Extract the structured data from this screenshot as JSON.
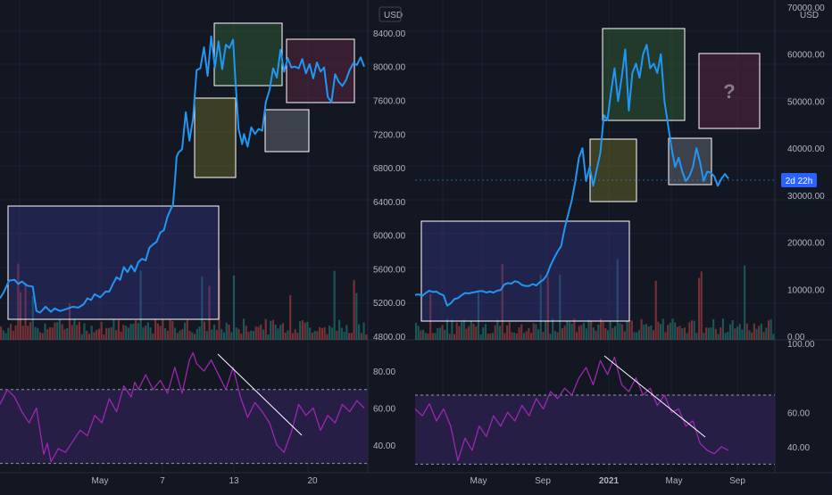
{
  "colors": {
    "background": "#131722",
    "grid": "#1e222d",
    "price_line": "#2196f3",
    "rsi_line": "#9c27b0",
    "rsi_band": "#2a1f4a",
    "axis_text": "#b2b5be",
    "vol_up": "#26a69a",
    "vol_down": "#ef5350"
  },
  "chart_data": [
    {
      "type": "line",
      "panel": "left-price",
      "currency_label": "USD",
      "y_ticks": [
        "8400.00",
        "8000.00",
        "7600.00",
        "7200.00",
        "6800.00",
        "6400.00",
        "6000.00",
        "5600.00",
        "5200.00",
        "4800.00"
      ],
      "ylim": [
        4800,
        8600
      ],
      "x_ticks": [
        "May",
        "7",
        "13",
        "20"
      ],
      "series": [
        {
          "x": [
            0,
            2,
            5,
            8,
            10,
            12,
            15,
            18,
            20,
            22,
            25,
            28,
            30,
            33,
            36,
            40,
            43,
            46,
            48,
            50,
            52,
            55,
            58,
            60,
            62,
            64,
            66,
            68,
            70,
            72,
            74,
            76,
            78,
            80,
            82,
            84,
            86,
            88,
            90,
            92,
            94,
            95,
            96,
            97,
            98,
            100,
            102,
            104,
            106,
            108,
            110,
            112,
            114,
            116,
            118,
            120,
            122,
            124,
            126,
            128,
            129,
            131,
            133,
            134,
            136,
            138,
            140,
            142,
            144,
            146,
            148,
            150,
            152,
            154,
            156,
            158,
            160,
            162,
            164,
            166,
            168,
            170,
            172,
            174,
            176,
            178,
            180,
            182,
            184,
            186,
            188,
            190,
            192,
            194,
            196,
            198,
            200
          ],
          "y": [
            5250,
            5320,
            5460,
            5470,
            5420,
            5450,
            5400,
            5390,
            5100,
            5080,
            5150,
            5090,
            5130,
            5100,
            5120,
            5150,
            5140,
            5180,
            5250,
            5230,
            5300,
            5260,
            5330,
            5330,
            5420,
            5500,
            5470,
            5620,
            5560,
            5640,
            5570,
            5680,
            5720,
            5700,
            5850,
            5890,
            5920,
            6030,
            6060,
            6220,
            6320,
            6360,
            6620,
            6930,
            6980,
            7020,
            7460,
            7120,
            7380,
            7960,
            7980,
            8230,
            7890,
            8360,
            7990,
            8300,
            7970,
            8260,
            8220,
            8320,
            7930,
            7260,
            7080,
            7200,
            7050,
            7280,
            7200,
            7260,
            7240,
            7580,
            7720,
            7980,
            7870,
            8200,
            7940,
            8100,
            7990,
            8000,
            7980,
            8090,
            7920,
            8030,
            7860,
            8050,
            7940,
            7990,
            7640,
            7580,
            7910,
            7820,
            7770,
            7840,
            7960,
            8040,
            8020,
            8110,
            8000
          ]
        }
      ]
    },
    {
      "type": "line",
      "panel": "right-price",
      "currency_label": "USD",
      "y_ticks": [
        "70000.00",
        "60000.00",
        "50000.00",
        "40000.00",
        "30000.00",
        "20000.00",
        "10000.00",
        "0.00"
      ],
      "ylim": [
        0,
        70000
      ],
      "x_ticks": [
        "May",
        "Sep",
        "2021",
        "May",
        "Sep"
      ],
      "last_value_label": "2d 22h",
      "box_label": "?",
      "series": [
        {
          "x": [
            0,
            2,
            4,
            6,
            8,
            10,
            12,
            14,
            16,
            18,
            20,
            22,
            24,
            26,
            28,
            30,
            32,
            34,
            36,
            38,
            40,
            42,
            44,
            46,
            48,
            50,
            52,
            54,
            56,
            58,
            60,
            62,
            64,
            66,
            68,
            70,
            72,
            74,
            76,
            78,
            80,
            82,
            84,
            86,
            88,
            90,
            92,
            94,
            96,
            98,
            100,
            102,
            104,
            106,
            108,
            110,
            112,
            114,
            116,
            118,
            120,
            122,
            124,
            126,
            128,
            130,
            132,
            134,
            136,
            138,
            140,
            142,
            144,
            146,
            148,
            150,
            152,
            154,
            156,
            158,
            160,
            162,
            164,
            166,
            168,
            170,
            172,
            174,
            176
          ],
          "y": [
            8800,
            8900,
            8600,
            9200,
            9700,
            9400,
            9500,
            9000,
            8700,
            6500,
            7000,
            7900,
            8100,
            8700,
            9200,
            9100,
            9300,
            9400,
            9600,
            9600,
            9300,
            9500,
            9300,
            9700,
            9800,
            11000,
            11300,
            11200,
            11700,
            11500,
            10900,
            10700,
            10700,
            11100,
            10800,
            11500,
            12000,
            13000,
            15000,
            16600,
            18000,
            19200,
            23000,
            26000,
            29000,
            33000,
            38000,
            40000,
            33000,
            36000,
            32000,
            35500,
            39000,
            47000,
            46000,
            52000,
            57000,
            50000,
            55000,
            61000,
            48000,
            56000,
            58000,
            55000,
            60000,
            62000,
            57000,
            58000,
            56000,
            60000,
            50000,
            45000,
            40000,
            36000,
            38000,
            35000,
            33000,
            34000,
            36000,
            40000,
            37000,
            33000,
            35000,
            34800,
            34000,
            32000,
            33500,
            34500,
            33500
          ]
        }
      ]
    },
    {
      "type": "line",
      "panel": "left-rsi",
      "y_ticks": [
        "80.00",
        "60.00",
        "40.00"
      ],
      "ylim": [
        25,
        95
      ],
      "band": [
        30,
        70
      ],
      "series": [
        {
          "x": [
            0,
            4,
            8,
            12,
            16,
            20,
            24,
            26,
            28,
            32,
            36,
            40,
            44,
            48,
            52,
            56,
            60,
            64,
            68,
            72,
            74,
            76,
            80,
            84,
            88,
            92,
            96,
            100,
            104,
            106,
            108,
            112,
            116,
            120,
            124,
            128,
            132,
            136,
            140,
            144,
            148,
            152,
            156,
            160,
            164,
            168,
            172,
            176,
            180,
            184,
            188,
            192,
            196,
            200
          ],
          "y": [
            62,
            70,
            66,
            58,
            52,
            60,
            35,
            41,
            31,
            38,
            36,
            42,
            48,
            45,
            56,
            52,
            65,
            58,
            72,
            66,
            74,
            70,
            78,
            70,
            75,
            68,
            82,
            68,
            86,
            90,
            84,
            80,
            86,
            78,
            70,
            82,
            66,
            55,
            63,
            58,
            52,
            40,
            36,
            47,
            62,
            56,
            60,
            48,
            56,
            52,
            62,
            58,
            64,
            60
          ]
        }
      ]
    },
    {
      "type": "line",
      "panel": "right-rsi",
      "y_ticks": [
        "100.00",
        "60.00",
        "40.00"
      ],
      "ylim": [
        25,
        100
      ],
      "band": [
        30,
        70
      ],
      "series": [
        {
          "x": [
            0,
            4,
            8,
            12,
            16,
            20,
            24,
            28,
            32,
            36,
            40,
            44,
            48,
            52,
            56,
            60,
            64,
            68,
            72,
            76,
            80,
            84,
            88,
            92,
            96,
            100,
            104,
            108,
            112,
            116,
            120,
            124,
            128,
            132,
            136,
            140,
            144,
            148,
            152,
            156,
            160,
            164,
            168,
            172,
            176
          ],
          "y": [
            62,
            58,
            65,
            55,
            62,
            52,
            32,
            45,
            38,
            52,
            46,
            58,
            52,
            60,
            55,
            64,
            58,
            68,
            62,
            72,
            68,
            74,
            70,
            80,
            86,
            76,
            90,
            82,
            92,
            76,
            72,
            80,
            70,
            74,
            64,
            70,
            60,
            62,
            52,
            55,
            42,
            38,
            36,
            40,
            38
          ]
        }
      ]
    }
  ]
}
